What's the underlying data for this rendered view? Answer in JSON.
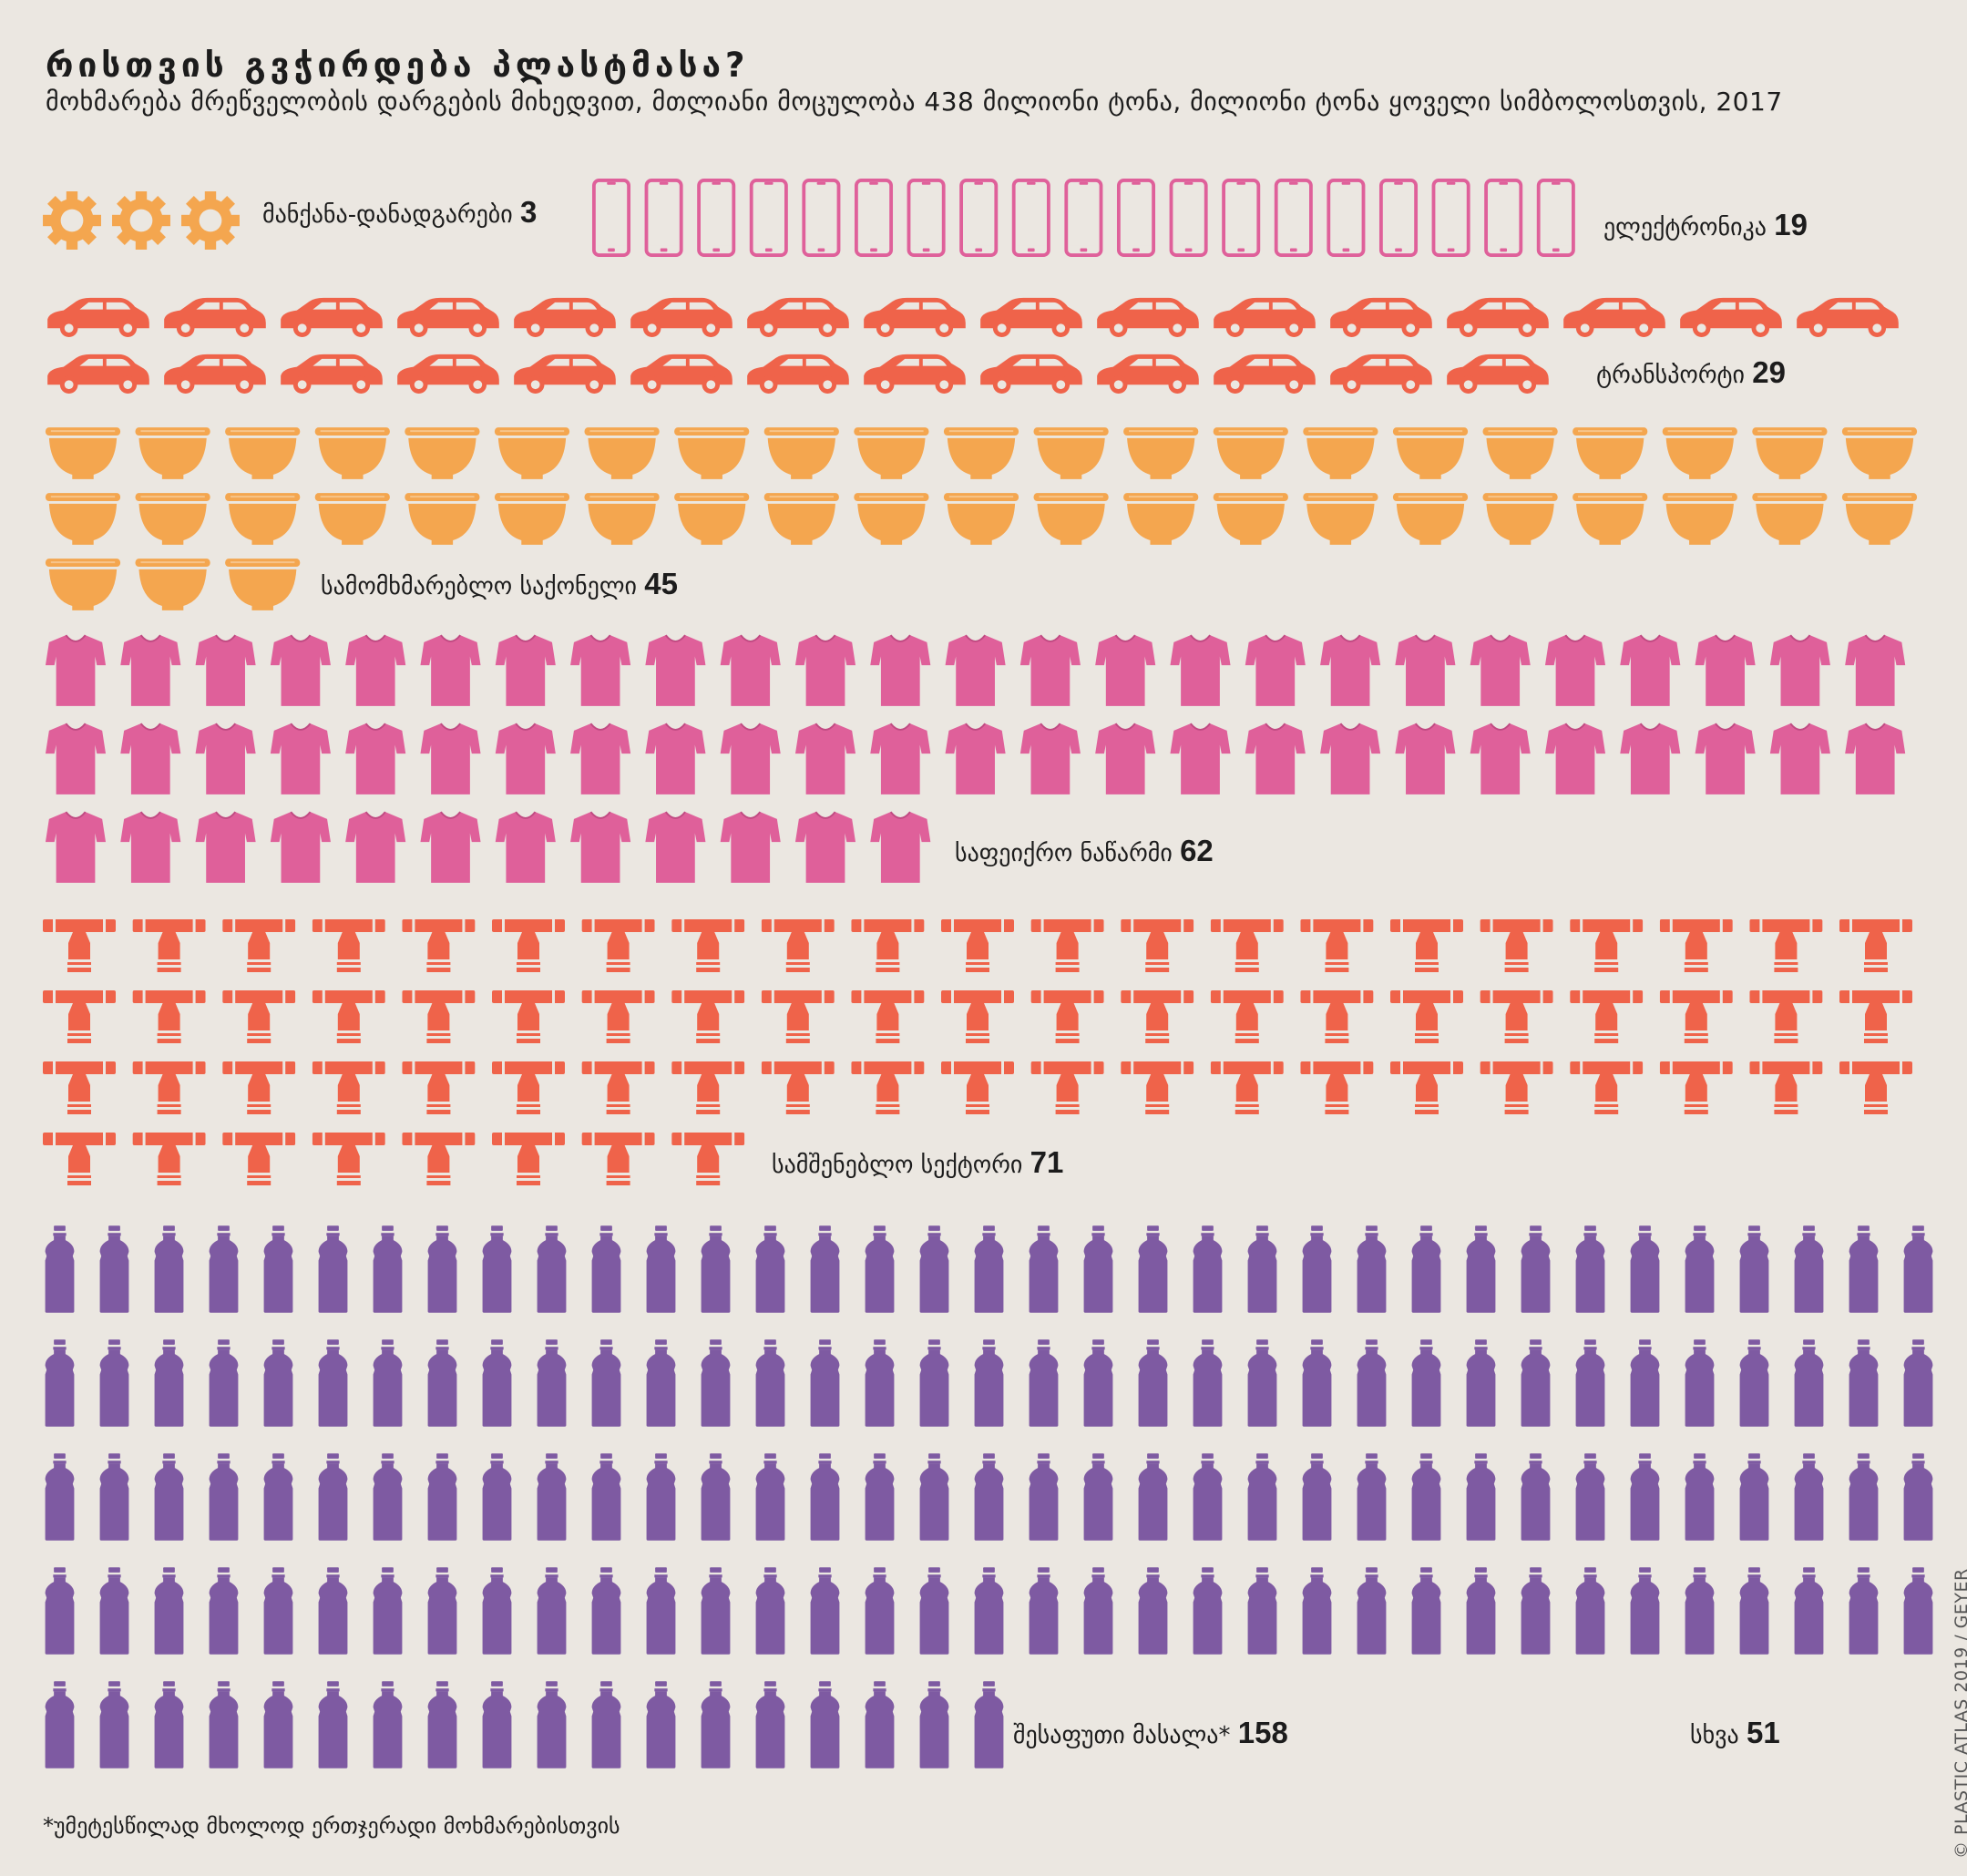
{
  "chart_data": {
    "type": "pictogram",
    "title": "რისთვის გვჭირდება პლასტმასა?",
    "subtitle": "მოხმარება მრეწველობის დარგების მიხედვით, მთლიანი მოცულობა 438 მილიონი ტონა, მილიონი ტონა ყოველი სიმბოლოსთვის, 2017",
    "total": 438,
    "unit_per_symbol": 1,
    "categories": [
      {
        "label": "მანქანა-დანადგარები",
        "value": 3,
        "icon": "gear-icon",
        "color": "#f4a64f"
      },
      {
        "label": "ელექტრონიკა",
        "value": 19,
        "icon": "phone-icon",
        "color": "#df609a"
      },
      {
        "label": "ტრანსპორტი",
        "value": 29,
        "icon": "car-icon",
        "color": "#ef634a"
      },
      {
        "label": "სამომხმარებლო საქონელი",
        "value": 45,
        "icon": "bowl-icon",
        "color": "#f4a64f"
      },
      {
        "label": "საფეიქრო ნაწარმი",
        "value": 62,
        "icon": "tshirt-icon",
        "color": "#df609a"
      },
      {
        "label": "სამშენებლო სექტორი",
        "value": 71,
        "icon": "pipe-icon",
        "color": "#ef634a"
      },
      {
        "label": "შესაფუთი მასალა*",
        "value": 158,
        "icon": "bottle-icon",
        "color": "#7e5aa2"
      },
      {
        "label": "სხვა",
        "value": 51,
        "icon": "none",
        "color": "#1c1c1c"
      }
    ]
  },
  "footnote": "*უმეტესწილად მხოლოდ ერთჯერადი მოხმარებისთვის",
  "credit": "© PLASTIC ATLAS 2019 / GEYER"
}
